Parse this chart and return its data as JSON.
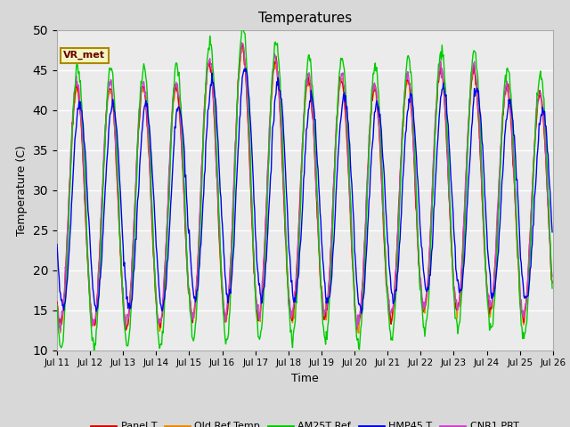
{
  "title": "Temperatures",
  "xlabel": "Time",
  "ylabel": "Temperature (C)",
  "ylim": [
    10,
    50
  ],
  "x_tick_labels": [
    "Jul 11",
    "Jul 12",
    "Jul 13",
    "Jul 14",
    "Jul 15",
    "Jul 16",
    "Jul 17",
    "Jul 18",
    "Jul 19",
    "Jul 20",
    "Jul 21",
    "Jul 22",
    "Jul 23",
    "Jul 24",
    "Jul 25",
    "Jul 26"
  ],
  "series_colors": {
    "Panel T": "#dd0000",
    "Old Ref Temp": "#ee8800",
    "AM25T Ref": "#00cc00",
    "HMP45 T": "#0000ee",
    "CNR1 PRT": "#cc44cc"
  },
  "legend_label": "VR_met",
  "plot_bg_color": "#ebebeb",
  "fig_bg_color": "#d8d8d8",
  "n_days": 15,
  "points_per_day": 48,
  "linewidth": 1.0,
  "day_mid": [
    28,
    28,
    28,
    28,
    30,
    31,
    30,
    29,
    29,
    28,
    29,
    30,
    30,
    29,
    28
  ],
  "day_amp": [
    30,
    30,
    30,
    30,
    32,
    34,
    32,
    30,
    30,
    30,
    30,
    30,
    30,
    28,
    28
  ]
}
